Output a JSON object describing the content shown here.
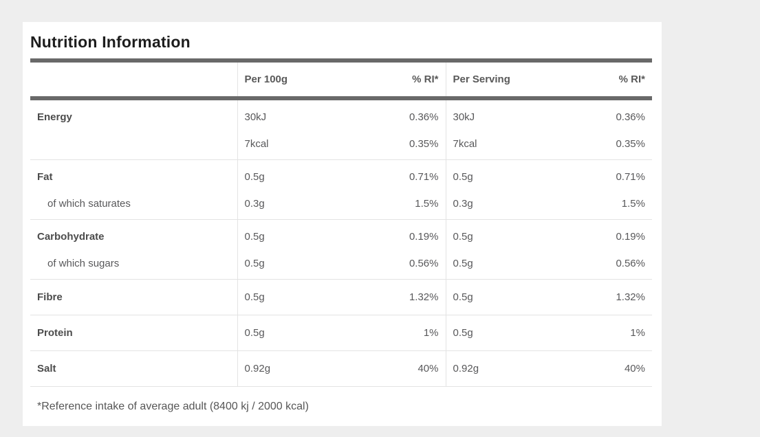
{
  "title": "Nutrition Information",
  "colors": {
    "page_background": "#eeeeee",
    "card_background": "#ffffff",
    "thick_rule": "#696969",
    "row_divider": "#e3e3e3",
    "title_text": "#1d1d1d",
    "header_text": "#595959",
    "label_text": "#4c4c4c",
    "value_text": "#58585a"
  },
  "table": {
    "columns": [
      "",
      "Per 100g",
      "% RI*",
      "Per Serving",
      "% RI*"
    ],
    "rows": [
      {
        "label": "Energy",
        "per_100g": "30kJ",
        "ri_100g": "0.36%",
        "per_serving": "30kJ",
        "ri_serving": "0.36%"
      },
      {
        "label": "",
        "per_100g": "7kcal",
        "ri_100g": "0.35%",
        "per_serving": "7kcal",
        "ri_serving": "0.35%"
      },
      {
        "label": "Fat",
        "per_100g": "0.5g",
        "ri_100g": "0.71%",
        "per_serving": "0.5g",
        "ri_serving": "0.71%"
      },
      {
        "label": "of which saturates",
        "per_100g": "0.3g",
        "ri_100g": "1.5%",
        "per_serving": "0.3g",
        "ri_serving": "1.5%"
      },
      {
        "label": "Carbohydrate",
        "per_100g": "0.5g",
        "ri_100g": "0.19%",
        "per_serving": "0.5g",
        "ri_serving": "0.19%"
      },
      {
        "label": "of which sugars",
        "per_100g": "0.5g",
        "ri_100g": "0.56%",
        "per_serving": "0.5g",
        "ri_serving": "0.56%"
      },
      {
        "label": "Fibre",
        "per_100g": "0.5g",
        "ri_100g": "1.32%",
        "per_serving": "0.5g",
        "ri_serving": "1.32%"
      },
      {
        "label": "Protein",
        "per_100g": "0.5g",
        "ri_100g": "1%",
        "per_serving": "0.5g",
        "ri_serving": "1%"
      },
      {
        "label": "Salt",
        "per_100g": "0.92g",
        "ri_100g": "40%",
        "per_serving": "0.92g",
        "ri_serving": "40%"
      }
    ]
  },
  "footnote": "*Reference intake of average adult (8400 kj / 2000 kcal)"
}
